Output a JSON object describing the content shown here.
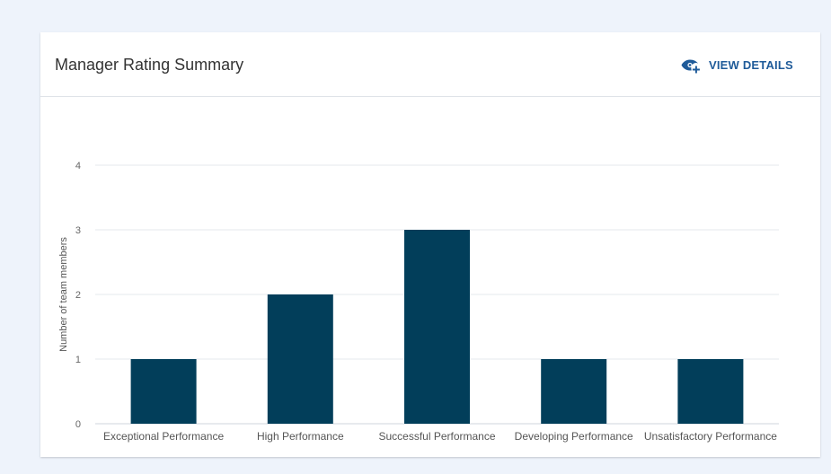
{
  "card": {
    "title": "Manager Rating Summary",
    "view_details_label": "VIEW DETAILS",
    "view_details_icon": "eye-plus-icon"
  },
  "colors": {
    "bar": "#023e5a",
    "accent": "#1f5b99",
    "background": "#eef3fb"
  },
  "chart_data": {
    "type": "bar",
    "title": "",
    "xlabel": "",
    "ylabel": "Number of team members",
    "categories": [
      "Exceptional Performance",
      "High Performance",
      "Successful Performance",
      "Developing Performance",
      "Unsatisfactory Performance"
    ],
    "values": [
      1,
      2,
      3,
      1,
      1
    ],
    "ylim": [
      0,
      4
    ],
    "yticks": [
      0,
      1,
      2,
      3,
      4
    ],
    "grid": true,
    "legend": "none"
  }
}
